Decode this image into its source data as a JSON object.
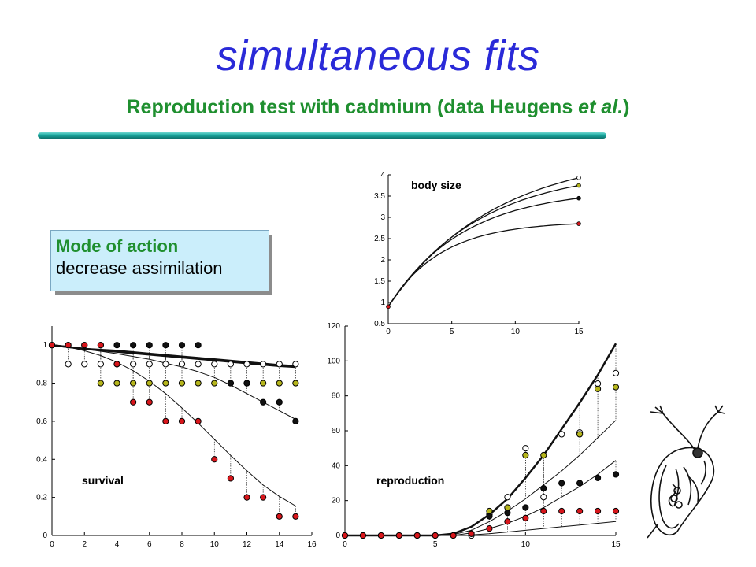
{
  "header": {
    "title": "simultaneous fits",
    "subtitle_main": "Reproduction test with cadmium (data Heugens ",
    "subtitle_italic": "et al.",
    "subtitle_end": ")"
  },
  "mode_of_action": {
    "line1": "Mode of action",
    "line2": "decrease assimilation"
  },
  "colors": {
    "title": "#2a2ad8",
    "subtitle": "#1f8f2f",
    "series": [
      "#ffffff",
      "#b5b51c",
      "#111111",
      "#d8161b"
    ]
  },
  "icons": [
    "daphnia-illustration"
  ],
  "chart_data": [
    {
      "id": "body-size",
      "type": "line",
      "label": "body size",
      "xlim": [
        0,
        15
      ],
      "ylim": [
        0.5,
        4
      ],
      "xticks": [
        0,
        5,
        10,
        15
      ],
      "yticks": [
        0.5,
        1,
        1.5,
        2,
        2.5,
        3,
        3.5,
        4
      ],
      "series": [
        {
          "color": "#ffffff",
          "final": 3.93,
          "points": [
            [
              0,
              0.9
            ],
            [
              15,
              3.93
            ]
          ]
        },
        {
          "color": "#b5b51c",
          "final": 3.75,
          "points": [
            [
              0,
              0.9
            ],
            [
              15,
              3.75
            ]
          ]
        },
        {
          "color": "#111111",
          "final": 3.45,
          "points": [
            [
              0,
              0.9
            ],
            [
              15,
              3.45
            ]
          ]
        },
        {
          "color": "#d8161b",
          "final": 2.85,
          "points": [
            [
              0,
              0.9
            ],
            [
              15,
              2.85
            ]
          ]
        }
      ]
    },
    {
      "id": "survival",
      "type": "scatter",
      "label": "survival",
      "xlim": [
        0,
        16
      ],
      "ylim": [
        0,
        1.1
      ],
      "xticks": [
        0,
        2,
        4,
        6,
        8,
        10,
        12,
        14,
        16
      ],
      "yticks": [
        0,
        0.2,
        0.4,
        0.6,
        0.8,
        1
      ],
      "series": [
        {
          "color": "#ffffff",
          "x": [
            1,
            2,
            3,
            4,
            5,
            6,
            7,
            8,
            9,
            10,
            11,
            12,
            13,
            14,
            15
          ],
          "y": [
            0.9,
            0.9,
            0.9,
            0.9,
            0.9,
            0.9,
            0.9,
            0.9,
            0.9,
            0.9,
            0.9,
            0.9,
            0.9,
            0.9,
            0.9
          ]
        },
        {
          "color": "#b5b51c",
          "x": [
            3,
            4,
            5,
            6,
            7,
            8,
            9,
            10,
            11,
            12,
            13,
            14,
            15
          ],
          "y": [
            0.8,
            0.8,
            0.8,
            0.8,
            0.8,
            0.8,
            0.8,
            0.8,
            0.8,
            0.8,
            0.8,
            0.8,
            0.8
          ]
        },
        {
          "color": "#111111",
          "x": [
            0,
            1,
            2,
            3,
            4,
            5,
            6,
            7,
            8,
            9,
            11,
            12,
            13,
            14,
            15
          ],
          "y": [
            1,
            1,
            1,
            1,
            1,
            1,
            1,
            1,
            1,
            1,
            0.8,
            0.8,
            0.7,
            0.7,
            0.6
          ]
        },
        {
          "color": "#d8161b",
          "x": [
            0,
            1,
            2,
            3,
            4,
            5,
            6,
            7,
            8,
            9,
            10,
            11,
            12,
            13,
            14,
            15
          ],
          "y": [
            1,
            1,
            1,
            1,
            0.9,
            0.7,
            0.7,
            0.6,
            0.6,
            0.6,
            0.4,
            0.3,
            0.2,
            0.2,
            0.1,
            0.1
          ]
        }
      ],
      "fits": [
        {
          "color": "#111111",
          "width": 2.5,
          "points": [
            [
              0,
              1
            ],
            [
              2,
              0.98
            ],
            [
              4,
              0.965
            ],
            [
              6,
              0.95
            ],
            [
              8,
              0.935
            ],
            [
              10,
              0.92
            ],
            [
              12,
              0.905
            ],
            [
              14,
              0.89
            ],
            [
              15,
              0.885
            ]
          ]
        },
        {
          "color": "#111111",
          "width": 2.5,
          "points": [
            [
              0,
              1
            ],
            [
              2,
              0.98
            ],
            [
              4,
              0.97
            ],
            [
              6,
              0.955
            ],
            [
              8,
              0.94
            ],
            [
              10,
              0.925
            ],
            [
              12,
              0.91
            ],
            [
              14,
              0.895
            ],
            [
              15,
              0.89
            ]
          ]
        },
        {
          "color": "#111111",
          "width": 1,
          "points": [
            [
              0,
              1
            ],
            [
              2,
              0.98
            ],
            [
              4,
              0.955
            ],
            [
              6,
              0.925
            ],
            [
              8,
              0.885
            ],
            [
              9,
              0.86
            ],
            [
              10,
              0.83
            ],
            [
              11,
              0.79
            ],
            [
              12,
              0.745
            ],
            [
              13,
              0.7
            ],
            [
              14,
              0.655
            ],
            [
              15,
              0.61
            ]
          ]
        },
        {
          "color": "#111111",
          "width": 1,
          "points": [
            [
              0,
              1
            ],
            [
              1,
              0.99
            ],
            [
              2,
              0.97
            ],
            [
              3,
              0.945
            ],
            [
              4,
              0.91
            ],
            [
              5,
              0.865
            ],
            [
              6,
              0.81
            ],
            [
              7,
              0.745
            ],
            [
              8,
              0.67
            ],
            [
              9,
              0.59
            ],
            [
              10,
              0.505
            ],
            [
              11,
              0.42
            ],
            [
              12,
              0.34
            ],
            [
              13,
              0.265
            ],
            [
              14,
              0.205
            ],
            [
              15,
              0.155
            ]
          ]
        }
      ]
    },
    {
      "id": "reproduction",
      "type": "scatter",
      "label": "reproduction",
      "xlim": [
        0,
        15
      ],
      "ylim": [
        0,
        120
      ],
      "xticks": [
        0,
        5,
        10,
        15
      ],
      "yticks": [
        0,
        20,
        40,
        60,
        80,
        100,
        120
      ],
      "series": [
        {
          "color": "#ffffff",
          "x": [
            0,
            1,
            2,
            3,
            4,
            5,
            6,
            7,
            8,
            9,
            10,
            11,
            12,
            13,
            14,
            15
          ],
          "y": [
            0,
            0,
            0,
            0,
            0,
            0,
            0,
            0,
            12,
            22,
            50,
            22,
            58,
            59,
            87,
            93
          ]
        },
        {
          "color": "#b5b51c",
          "x": [
            8,
            9,
            10,
            11,
            13,
            14,
            15
          ],
          "y": [
            14,
            16,
            46,
            46,
            58,
            84,
            85
          ]
        },
        {
          "color": "#111111",
          "x": [
            7,
            8,
            9,
            10,
            11,
            12,
            13,
            14,
            15
          ],
          "y": [
            1,
            11,
            13,
            16,
            27,
            30,
            30,
            33,
            35
          ]
        },
        {
          "color": "#d8161b",
          "x": [
            0,
            1,
            2,
            3,
            4,
            5,
            6,
            7,
            8,
            9,
            10,
            11,
            12,
            13,
            14,
            15
          ],
          "y": [
            0,
            0,
            0,
            0,
            0,
            0,
            0,
            1,
            4,
            8,
            10,
            14,
            14,
            14,
            14,
            14
          ]
        }
      ],
      "fits": [
        {
          "color": "#111111",
          "width": 2.5,
          "points": [
            [
              0,
              0
            ],
            [
              5,
              0
            ],
            [
              6,
              1
            ],
            [
              7,
              5
            ],
            [
              8,
              12
            ],
            [
              9,
              21
            ],
            [
              10,
              33
            ],
            [
              11,
              46
            ],
            [
              12,
              61
            ],
            [
              13,
              76
            ],
            [
              14,
              92
            ],
            [
              15,
              110
            ]
          ]
        },
        {
          "color": "#111111",
          "width": 1,
          "points": [
            [
              0,
              0
            ],
            [
              5,
              0
            ],
            [
              6,
              0.5
            ],
            [
              7,
              3
            ],
            [
              8,
              8
            ],
            [
              9,
              14
            ],
            [
              10,
              21
            ],
            [
              11,
              29
            ],
            [
              12,
              37
            ],
            [
              13,
              46
            ],
            [
              14,
              56
            ],
            [
              15,
              66
            ]
          ]
        },
        {
          "color": "#111111",
          "width": 1,
          "points": [
            [
              0,
              0
            ],
            [
              6,
              0
            ],
            [
              7,
              1.5
            ],
            [
              8,
              4
            ],
            [
              9,
              7
            ],
            [
              10,
              11
            ],
            [
              11,
              16
            ],
            [
              12,
              22
            ],
            [
              13,
              28
            ],
            [
              14,
              35
            ],
            [
              15,
              43
            ]
          ]
        },
        {
          "color": "#111111",
          "width": 1,
          "points": [
            [
              0,
              0
            ],
            [
              6.5,
              0
            ],
            [
              8,
              1
            ],
            [
              9,
              2
            ],
            [
              10,
              3
            ],
            [
              11,
              4
            ],
            [
              12,
              5
            ],
            [
              13,
              6
            ],
            [
              14,
              7
            ],
            [
              15,
              8
            ]
          ]
        }
      ]
    }
  ]
}
